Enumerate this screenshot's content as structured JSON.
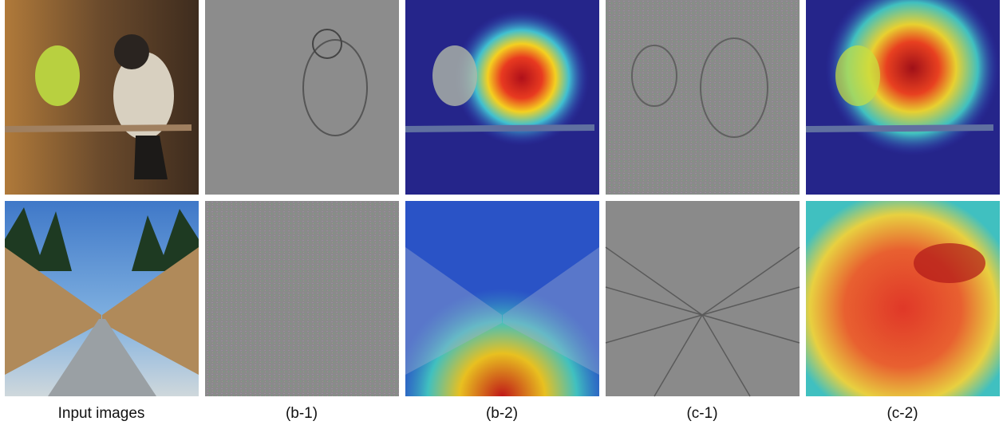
{
  "figure": {
    "captions": [
      "Input images",
      "(b-1)",
      "(b-2)",
      "(c-1)",
      "(c-2)"
    ]
  }
}
